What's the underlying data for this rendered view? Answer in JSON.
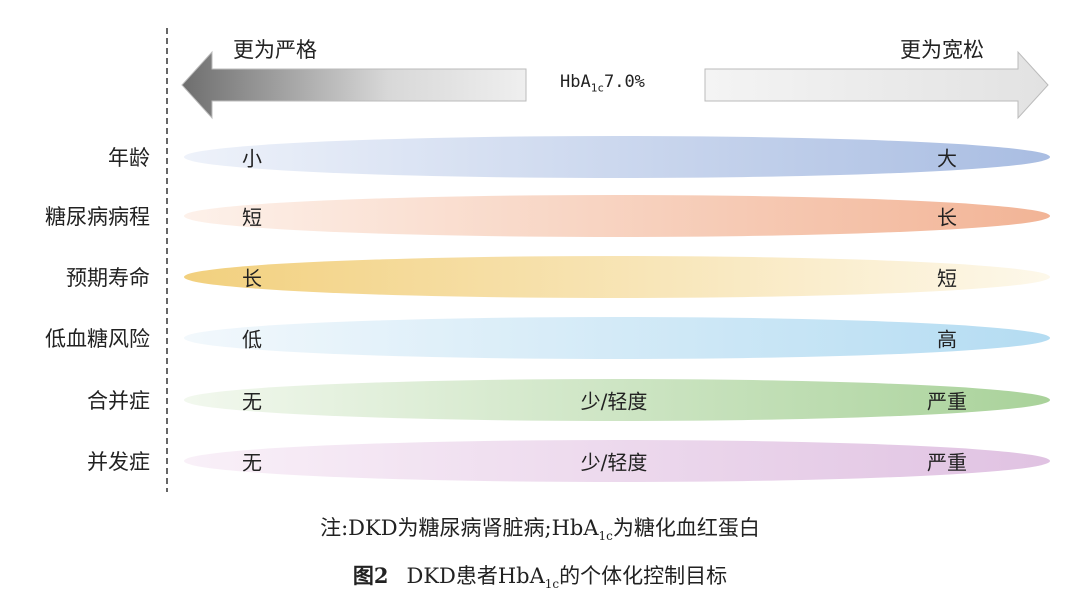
{
  "header": {
    "left_label": "更为严格",
    "right_label": "更为宽松",
    "center_prefix": "HbA",
    "center_sub": "1c",
    "center_value": "7.0%"
  },
  "rows": [
    {
      "label": "年龄",
      "left": "小",
      "middle": "",
      "right": "大",
      "colors": [
        "#eef2fa",
        "#a9bde2"
      ]
    },
    {
      "label": "糖尿病病程",
      "left": "短",
      "middle": "",
      "right": "长",
      "colors": [
        "#fdf1ea",
        "#f2b496"
      ]
    },
    {
      "label": "预期寿命",
      "left": "长",
      "middle": "",
      "right": "短",
      "colors": [
        "#f2d07e",
        "#fdf8ea"
      ]
    },
    {
      "label": "低血糖风险",
      "left": "低",
      "middle": "",
      "right": "高",
      "colors": [
        "#f2f8fc",
        "#b4dcf2"
      ]
    },
    {
      "label": "合并症",
      "left": "无",
      "middle": "少/轻度",
      "right": "严重",
      "colors": [
        "#f2f8ee",
        "#a9d29a"
      ]
    },
    {
      "label": "并发症",
      "left": "无",
      "middle": "少/轻度",
      "right": "严重",
      "colors": [
        "#f9f0f8",
        "#e0c2e2"
      ]
    }
  ],
  "footer": {
    "note_a": "注:DKD为糖尿病肾脏病;HbA",
    "note_sub": "1c",
    "note_b": "为糖化血红蛋白",
    "figure_num": "图2",
    "caption_a": "DKD患者HbA",
    "caption_sub": "1c",
    "caption_b": "的个体化控制目标"
  }
}
